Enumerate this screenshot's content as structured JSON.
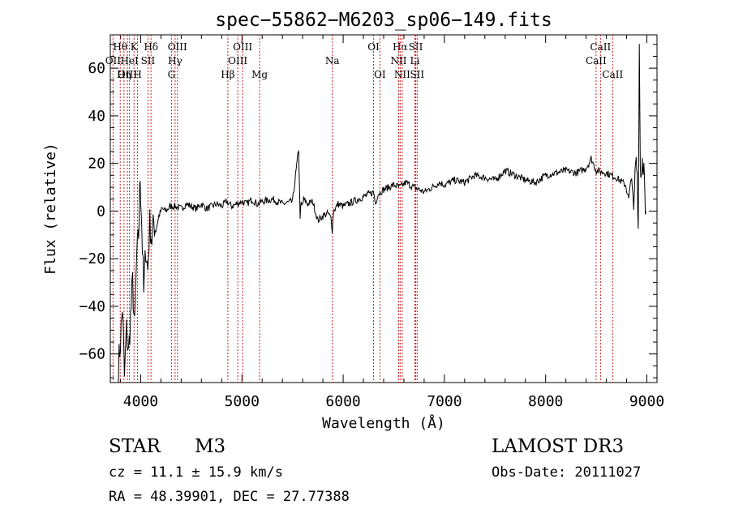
{
  "chart_data": {
    "type": "line",
    "title": "spec−55862−M6203_sp06−149.fits",
    "xlabel": "Wavelength (Å)",
    "ylabel": "Flux (relative)",
    "xlim": [
      3700,
      9100
    ],
    "ylim": [
      -72,
      74
    ],
    "x_ticks": [
      4000,
      5000,
      6000,
      7000,
      8000,
      9000
    ],
    "x_tick_labels": [
      "4000",
      "5000",
      "6000",
      "7000",
      "8000",
      "9000"
    ],
    "y_ticks": [
      -60,
      -40,
      -20,
      0,
      20,
      40,
      60
    ],
    "y_tick_labels": [
      "−60",
      "−40",
      "−20",
      "0",
      "20",
      "40",
      "60"
    ],
    "grid": false,
    "series": [
      {
        "name": "flux",
        "color": "#000000",
        "noise": 3,
        "x": [
          3780,
          3800,
          3820,
          3840,
          3860,
          3880,
          3900,
          3920,
          3940,
          3960,
          3980,
          3995,
          4010,
          4030,
          4050,
          4070,
          4090,
          4110,
          4130,
          4150,
          4180,
          4210,
          4250,
          4290,
          4340,
          4400,
          4450,
          4500,
          4550,
          4600,
          4650,
          4700,
          4750,
          4800,
          4850,
          4900,
          4950,
          5000,
          5050,
          5100,
          5150,
          5200,
          5300,
          5400,
          5500,
          5560,
          5575,
          5585,
          5595,
          5610,
          5650,
          5700,
          5750,
          5800,
          5850,
          5880,
          5893,
          5905,
          5950,
          6000,
          6100,
          6200,
          6300,
          6320,
          6340,
          6400,
          6500,
          6560,
          6620,
          6700,
          6800,
          6880,
          6950,
          7000,
          7100,
          7200,
          7300,
          7400,
          7500,
          7600,
          7700,
          7800,
          7900,
          8000,
          8100,
          8200,
          8300,
          8400,
          8450,
          8500,
          8600,
          8700,
          8760,
          8790,
          8820,
          8850,
          8870,
          8890,
          8905,
          8915,
          8925,
          8935,
          8945,
          8955,
          8965,
          8975,
          8985,
          8990
        ],
        "y": [
          -65,
          -55,
          -40,
          -70,
          -50,
          -60,
          -45,
          -30,
          -50,
          -20,
          -10,
          15,
          -5,
          -35,
          -15,
          -25,
          -5,
          -12,
          -5,
          -8,
          -2,
          1,
          0,
          2,
          2,
          1,
          3,
          2,
          1,
          3,
          1,
          2,
          3,
          2,
          4,
          2,
          3,
          4,
          3,
          5,
          3,
          4,
          5,
          3,
          4,
          26,
          -2,
          3,
          2,
          5,
          3,
          4,
          -4,
          -2,
          -1,
          -3,
          -8,
          0,
          3,
          2,
          4,
          6,
          8,
          3,
          7,
          9,
          11,
          10,
          12,
          10,
          8,
          10,
          12,
          11,
          13,
          12,
          15,
          14,
          13,
          17,
          15,
          13,
          12,
          15,
          16,
          17,
          16,
          18,
          22,
          17,
          16,
          14,
          12,
          11,
          5,
          15,
          0,
          22,
          16,
          -8,
          70,
          20,
          15,
          22,
          20,
          15,
          -5,
          0
        ]
      }
    ],
    "lines": [
      {
        "label": "Hθ",
        "wavelength": 3798,
        "row": 1
      },
      {
        "label": "OII",
        "wavelength": 3727,
        "row": 2
      },
      {
        "label": "OIII",
        "wavelength": 3869,
        "row": 3
      },
      {
        "label": "Hη",
        "wavelength": 3835,
        "row": 3
      },
      {
        "label": "K",
        "wavelength": 3934,
        "row": 1
      },
      {
        "label": "HeI",
        "wavelength": 3889,
        "row": 2
      },
      {
        "label": "H",
        "wavelength": 3969,
        "row": 3
      },
      {
        "label": "Hδ",
        "wavelength": 4102,
        "row": 1
      },
      {
        "label": "SII",
        "wavelength": 4072,
        "row": 2
      },
      {
        "label": "OIII",
        "wavelength": 4363,
        "row": 1
      },
      {
        "label": "Hγ",
        "wavelength": 4340,
        "row": 2
      },
      {
        "label": "G",
        "wavelength": 4304,
        "row": 3
      },
      {
        "label": "Hβ",
        "wavelength": 4861,
        "row": 3
      },
      {
        "label": "OIII",
        "wavelength": 5007,
        "row": 1
      },
      {
        "label": "OIII",
        "wavelength": 4959,
        "row": 2
      },
      {
        "label": "Mg",
        "wavelength": 5175,
        "row": 3
      },
      {
        "label": "Na",
        "wavelength": 5893,
        "row": 2
      },
      {
        "label": "OI",
        "wavelength": 6300,
        "row": 1
      },
      {
        "label": "OI",
        "wavelength": 6363,
        "row": 3
      },
      {
        "label": "Hα",
        "wavelength": 6563,
        "row": 1
      },
      {
        "label": "SII",
        "wavelength": 6717,
        "row": 1
      },
      {
        "label": "NII",
        "wavelength": 6548,
        "row": 2
      },
      {
        "label": "Li",
        "wavelength": 6708,
        "row": 2
      },
      {
        "label": "NII",
        "wavelength": 6583,
        "row": 3
      },
      {
        "label": "SII",
        "wavelength": 6731,
        "row": 3
      },
      {
        "label": "CaII",
        "wavelength": 8542,
        "row": 1
      },
      {
        "label": "CaII",
        "wavelength": 8498,
        "row": 2
      },
      {
        "label": "CaII",
        "wavelength": 8662,
        "row": 3
      }
    ],
    "line_color": "#cc2222"
  },
  "info": {
    "object_type": "STAR",
    "subclass": "M3",
    "survey": "LAMOST DR3",
    "redshift_text": "cz = 11.1 ± 15.9 km/s",
    "obs_date": "Obs-Date: 20111027",
    "coords": "RA =  48.39901, DEC =  27.77388"
  }
}
